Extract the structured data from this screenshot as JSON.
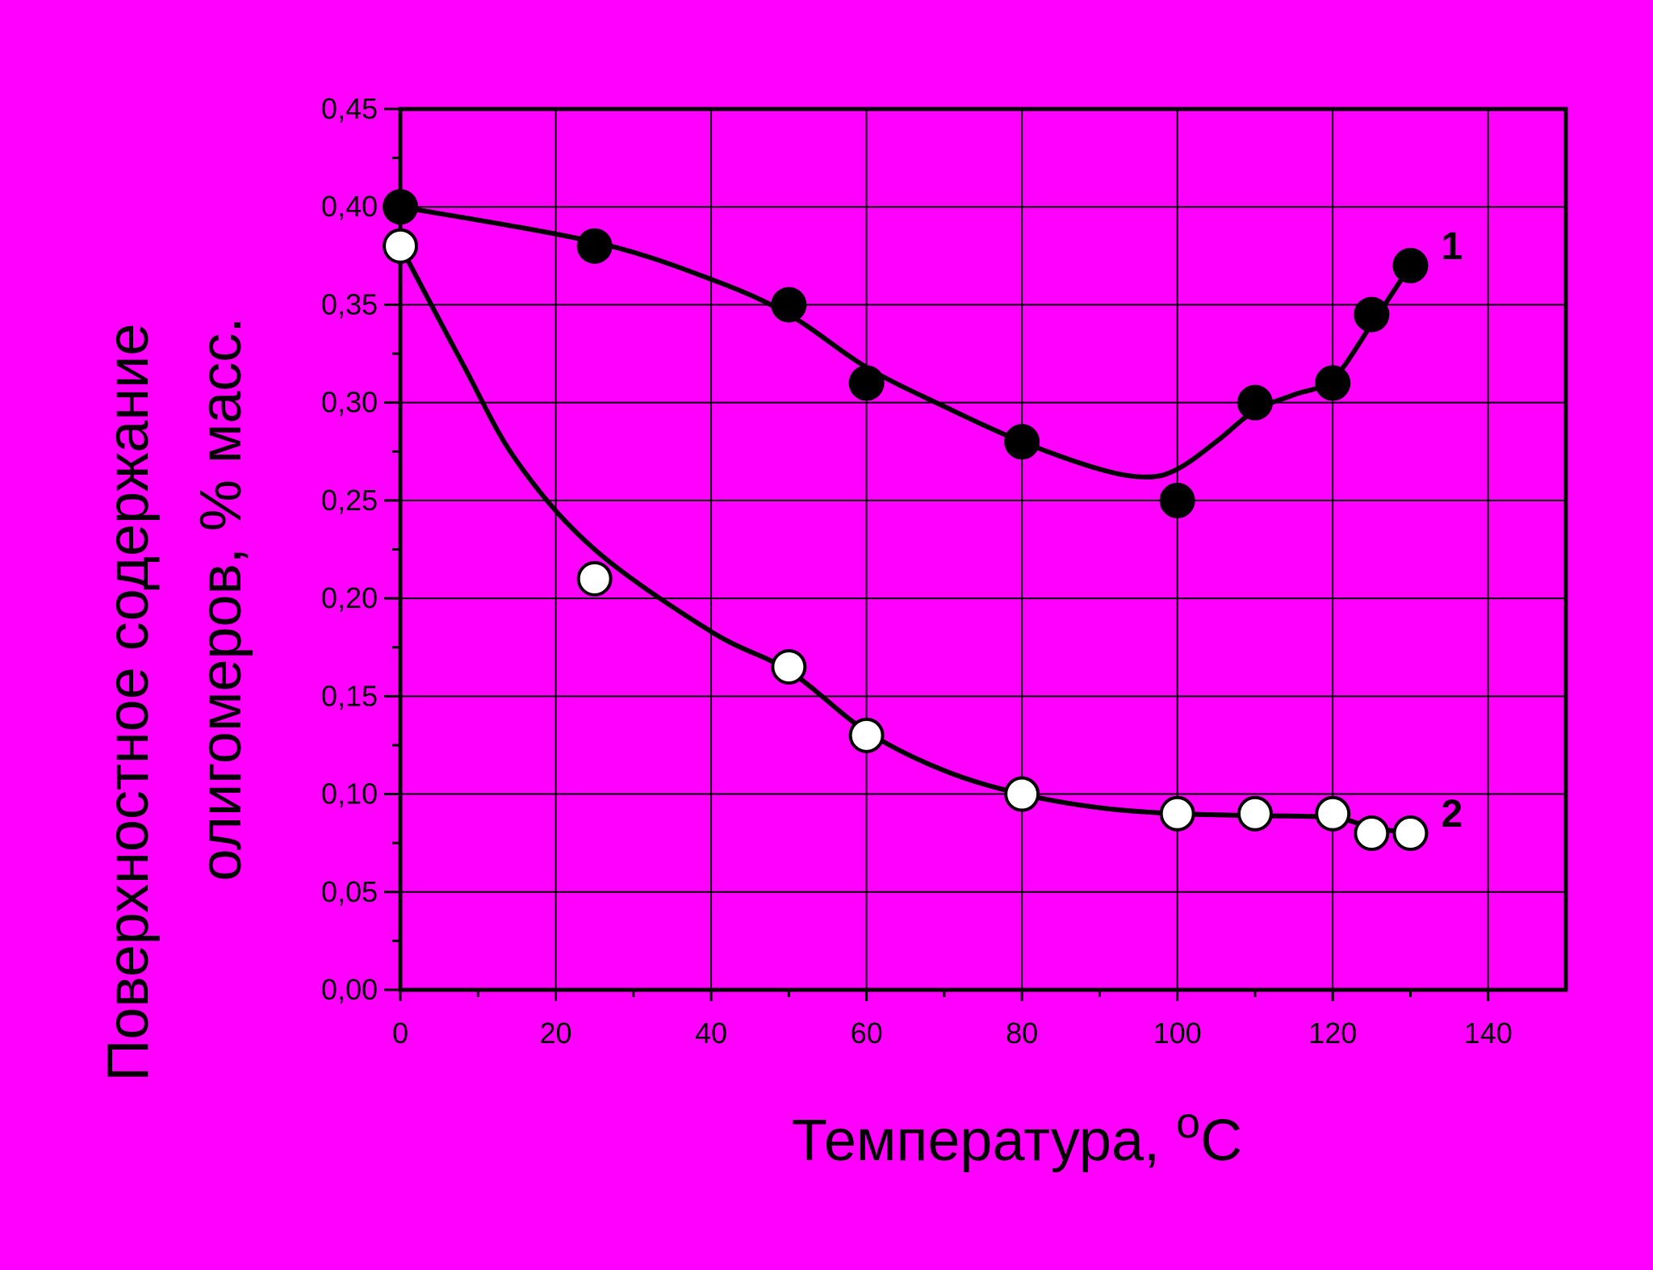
{
  "colors": {
    "background": "#ff00ff",
    "ink": "#000000",
    "series1_marker": "#000000",
    "series2_marker": "#ffffff"
  },
  "chart_data": {
    "type": "line",
    "title": "",
    "xlabel": "Температура, ",
    "xlabel_superscript": "о",
    "xlabel_unit": "С",
    "ylabel_line1": "Поверхностное содержание",
    "ylabel_line2": "олигомеров,  % масс.",
    "xlim": [
      0,
      150
    ],
    "ylim": [
      0,
      0.45
    ],
    "grid": true,
    "x_ticks": [
      "0",
      "20",
      "40",
      "60",
      "80",
      "100",
      "120",
      "140"
    ],
    "y_ticks": [
      "0,00",
      "0,05",
      "0,10",
      "0,15",
      "0,20",
      "0,25",
      "0,30",
      "0,35",
      "0,40",
      "0,45"
    ],
    "series": [
      {
        "name": "1",
        "marker": "filled-circle",
        "points": [
          {
            "x": 0,
            "y": 0.4
          },
          {
            "x": 25,
            "y": 0.38
          },
          {
            "x": 50,
            "y": 0.35
          },
          {
            "x": 60,
            "y": 0.31
          },
          {
            "x": 80,
            "y": 0.28
          },
          {
            "x": 100,
            "y": 0.25
          },
          {
            "x": 110,
            "y": 0.3
          },
          {
            "x": 120,
            "y": 0.31
          },
          {
            "x": 125,
            "y": 0.345
          },
          {
            "x": 130,
            "y": 0.37
          }
        ],
        "curve": [
          {
            "x": 0,
            "y": 0.4
          },
          {
            "x": 25,
            "y": 0.382
          },
          {
            "x": 40,
            "y": 0.363
          },
          {
            "x": 50,
            "y": 0.345
          },
          {
            "x": 60,
            "y": 0.318
          },
          {
            "x": 70,
            "y": 0.298
          },
          {
            "x": 80,
            "y": 0.28
          },
          {
            "x": 90,
            "y": 0.266
          },
          {
            "x": 96,
            "y": 0.262
          },
          {
            "x": 100,
            "y": 0.266
          },
          {
            "x": 105,
            "y": 0.28
          },
          {
            "x": 110,
            "y": 0.296
          },
          {
            "x": 115,
            "y": 0.304
          },
          {
            "x": 120,
            "y": 0.312
          },
          {
            "x": 125,
            "y": 0.34
          },
          {
            "x": 130,
            "y": 0.37
          }
        ]
      },
      {
        "name": "2",
        "marker": "open-circle",
        "points": [
          {
            "x": 0,
            "y": 0.38
          },
          {
            "x": 25,
            "y": 0.21
          },
          {
            "x": 50,
            "y": 0.165
          },
          {
            "x": 60,
            "y": 0.13
          },
          {
            "x": 80,
            "y": 0.1
          },
          {
            "x": 100,
            "y": 0.09
          },
          {
            "x": 110,
            "y": 0.09
          },
          {
            "x": 120,
            "y": 0.09
          },
          {
            "x": 125,
            "y": 0.08
          },
          {
            "x": 130,
            "y": 0.08
          }
        ],
        "curve": [
          {
            "x": 0,
            "y": 0.38
          },
          {
            "x": 8,
            "y": 0.32
          },
          {
            "x": 15,
            "y": 0.27
          },
          {
            "x": 25,
            "y": 0.225
          },
          {
            "x": 40,
            "y": 0.183
          },
          {
            "x": 50,
            "y": 0.163
          },
          {
            "x": 60,
            "y": 0.132
          },
          {
            "x": 70,
            "y": 0.112
          },
          {
            "x": 80,
            "y": 0.1
          },
          {
            "x": 90,
            "y": 0.093
          },
          {
            "x": 100,
            "y": 0.09
          },
          {
            "x": 110,
            "y": 0.089
          },
          {
            "x": 120,
            "y": 0.088
          },
          {
            "x": 125,
            "y": 0.083
          },
          {
            "x": 130,
            "y": 0.08
          }
        ]
      }
    ]
  }
}
